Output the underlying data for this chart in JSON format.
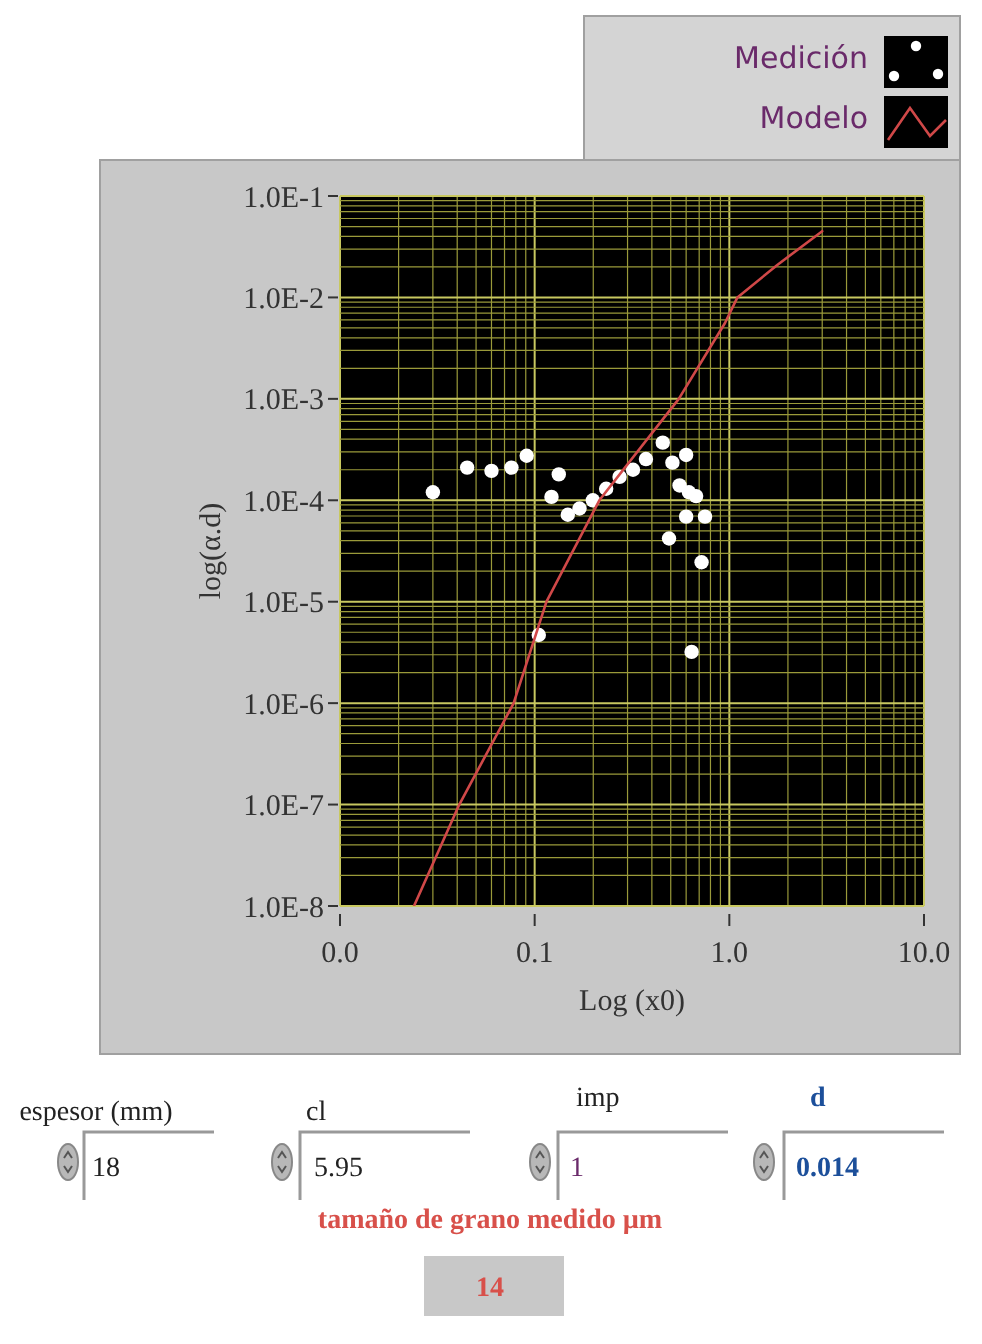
{
  "chart_data": {
    "type": "scatter",
    "xlabel": "Log (x0)",
    "ylabel": "log(α.d)",
    "log": "xy",
    "grid": true,
    "legend": "top right",
    "xlim": [
      0.01,
      10
    ],
    "ylim": [
      1e-08,
      0.1
    ],
    "xticks": [
      {
        "value": 0.01,
        "label": "0.0"
      },
      {
        "value": 0.02,
        "label": null
      },
      {
        "value": 0.03,
        "label": null
      },
      {
        "value": 0.04,
        "label": null
      },
      {
        "value": 0.05,
        "label": null
      },
      {
        "value": 0.06,
        "label": null
      },
      {
        "value": 0.07,
        "label": null
      },
      {
        "value": 0.08,
        "label": null
      },
      {
        "value": 0.09,
        "label": null
      },
      {
        "value": 0.1,
        "label": "0.1"
      },
      {
        "value": 0.2,
        "label": null
      },
      {
        "value": 0.3,
        "label": null
      },
      {
        "value": 0.4,
        "label": null
      },
      {
        "value": 0.5,
        "label": null
      },
      {
        "value": 0.6,
        "label": null
      },
      {
        "value": 0.7,
        "label": null
      },
      {
        "value": 0.8,
        "label": null
      },
      {
        "value": 0.9,
        "label": null
      },
      {
        "value": 1,
        "label": "1.0"
      },
      {
        "value": 2,
        "label": null
      },
      {
        "value": 3,
        "label": null
      },
      {
        "value": 4,
        "label": null
      },
      {
        "value": 5,
        "label": null
      },
      {
        "value": 6,
        "label": null
      },
      {
        "value": 7,
        "label": null
      },
      {
        "value": 8,
        "label": null
      },
      {
        "value": 9,
        "label": null
      },
      {
        "value": 10,
        "label": "10.0"
      }
    ],
    "yticks": [
      {
        "value": 1e-08,
        "label": "1.0E-8"
      },
      {
        "value": 2e-08,
        "label": null
      },
      {
        "value": 3e-08,
        "label": null
      },
      {
        "value": 4e-08,
        "label": null
      },
      {
        "value": 5e-08,
        "label": null
      },
      {
        "value": 6e-08,
        "label": null
      },
      {
        "value": 7e-08,
        "label": null
      },
      {
        "value": 8e-08,
        "label": null
      },
      {
        "value": 9e-08,
        "label": null
      },
      {
        "value": 1e-07,
        "label": "1.0E-7"
      },
      {
        "value": 2e-07,
        "label": null
      },
      {
        "value": 3e-07,
        "label": null
      },
      {
        "value": 4e-07,
        "label": null
      },
      {
        "value": 5e-07,
        "label": null
      },
      {
        "value": 6e-07,
        "label": null
      },
      {
        "value": 7e-07,
        "label": null
      },
      {
        "value": 8e-07,
        "label": null
      },
      {
        "value": 9e-07,
        "label": null
      },
      {
        "value": 1e-06,
        "label": "1.0E-6"
      },
      {
        "value": 2e-06,
        "label": null
      },
      {
        "value": 3e-06,
        "label": null
      },
      {
        "value": 4e-06,
        "label": null
      },
      {
        "value": 5e-06,
        "label": null
      },
      {
        "value": 6e-06,
        "label": null
      },
      {
        "value": 7e-06,
        "label": null
      },
      {
        "value": 8e-06,
        "label": null
      },
      {
        "value": 9e-06,
        "label": null
      },
      {
        "value": 1e-05,
        "label": "1.0E-5"
      },
      {
        "value": 2e-05,
        "label": null
      },
      {
        "value": 3e-05,
        "label": null
      },
      {
        "value": 4e-05,
        "label": null
      },
      {
        "value": 5e-05,
        "label": null
      },
      {
        "value": 6e-05,
        "label": null
      },
      {
        "value": 7e-05,
        "label": null
      },
      {
        "value": 8e-05,
        "label": null
      },
      {
        "value": 9e-05,
        "label": null
      },
      {
        "value": 0.0001,
        "label": "1.0E-4"
      },
      {
        "value": 0.0002,
        "label": null
      },
      {
        "value": 0.0003,
        "label": null
      },
      {
        "value": 0.0004,
        "label": null
      },
      {
        "value": 0.0005,
        "label": null
      },
      {
        "value": 0.0006,
        "label": null
      },
      {
        "value": 0.0007,
        "label": null
      },
      {
        "value": 0.0008,
        "label": null
      },
      {
        "value": 0.0009,
        "label": null
      },
      {
        "value": 0.001,
        "label": "1.0E-3"
      },
      {
        "value": 0.002,
        "label": null
      },
      {
        "value": 0.003,
        "label": null
      },
      {
        "value": 0.004,
        "label": null
      },
      {
        "value": 0.005,
        "label": null
      },
      {
        "value": 0.006,
        "label": null
      },
      {
        "value": 0.007,
        "label": null
      },
      {
        "value": 0.008,
        "label": null
      },
      {
        "value": 0.009,
        "label": null
      },
      {
        "value": 0.01,
        "label": "1.0E-2"
      },
      {
        "value": 0.02,
        "label": null
      },
      {
        "value": 0.03,
        "label": null
      },
      {
        "value": 0.04,
        "label": null
      },
      {
        "value": 0.05,
        "label": null
      },
      {
        "value": 0.06,
        "label": null
      },
      {
        "value": 0.07,
        "label": null
      },
      {
        "value": 0.08,
        "label": null
      },
      {
        "value": 0.09,
        "label": null
      },
      {
        "value": 0.1,
        "label": "1.0E-1"
      }
    ],
    "series": [
      {
        "name": "Medición",
        "marker": "circle",
        "color": "#ffffff",
        "x": [
          0.03,
          0.045,
          0.06,
          0.076,
          0.091,
          0.133,
          0.122,
          0.105,
          0.148,
          0.17,
          0.199,
          0.233,
          0.273,
          0.32,
          0.373,
          0.455,
          0.51,
          0.6,
          0.555,
          0.62,
          0.675,
          0.6,
          0.75,
          0.49,
          0.72,
          0.64
        ],
        "values": [
          0.00012,
          0.00021,
          0.000195,
          0.00021,
          0.000275,
          0.00018,
          0.000108,
          4.7e-06,
          7.2e-05,
          8.3e-05,
          0.0001,
          0.00013,
          0.00017,
          0.0002,
          0.000255,
          0.00037,
          0.000235,
          0.00028,
          0.00014,
          0.00012,
          0.00011,
          6.9e-05,
          6.9e-05,
          4.2e-05,
          2.45e-05,
          3.2e-06
        ]
      },
      {
        "name": "Modelo",
        "type": "line",
        "marker": "none",
        "line_style": "solid",
        "color": "#d04848",
        "x": [
          0.024,
          0.041,
          0.078,
          0.115,
          0.215,
          0.55,
          0.95,
          1.1,
          1.77,
          3.0
        ],
        "values": [
          1e-08,
          1e-07,
          1e-06,
          1e-05,
          0.0001,
          0.001,
          0.0056,
          0.01,
          0.021,
          0.045
        ]
      }
    ],
    "annotations": [
      "espesor (mm)",
      "18",
      "cl",
      "5.95",
      "imp",
      "1",
      "d",
      "0.014",
      "tamaño de grano medido µm",
      "14"
    ]
  }
}
